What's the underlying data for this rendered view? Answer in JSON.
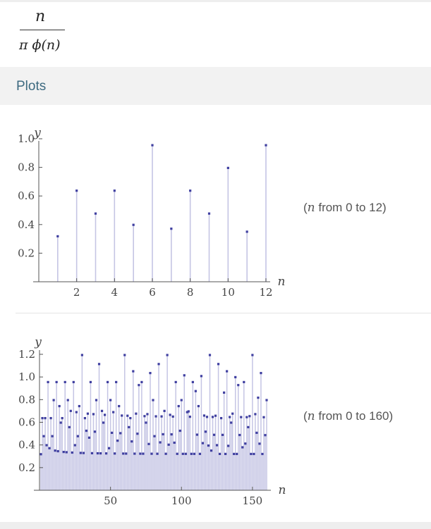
{
  "formula": {
    "numerator": "n",
    "denominator": "π ϕ(n)"
  },
  "section_title": "Plots",
  "plots": [
    {
      "caption_var": "n",
      "caption_rest": " from 0 to 12)"
    },
    {
      "caption_var": "n",
      "caption_rest": " from 0 to 160)"
    }
  ],
  "colors": {
    "stem": "#c5c5e4",
    "point": "#3f3fa0",
    "axis": "#555555"
  },
  "chart_data": [
    {
      "type": "scatter",
      "style": "discrete-stem",
      "xlabel": "n",
      "ylabel": "y",
      "xlim": [
        0,
        12
      ],
      "ylim": [
        0,
        1.0
      ],
      "xticks": [
        2,
        4,
        6,
        8,
        10,
        12
      ],
      "yticks": [
        0.2,
        0.4,
        0.6,
        0.8,
        1.0
      ],
      "x": [
        1,
        2,
        3,
        4,
        5,
        6,
        7,
        8,
        9,
        10,
        11,
        12
      ],
      "y": [
        0.318,
        0.637,
        0.477,
        0.637,
        0.398,
        0.955,
        0.371,
        0.637,
        0.477,
        0.796,
        0.35,
        0.955
      ]
    },
    {
      "type": "scatter",
      "style": "discrete-stem",
      "xlabel": "n",
      "ylabel": "y",
      "xlim": [
        0,
        160
      ],
      "ylim": [
        0,
        1.2
      ],
      "xticks": [
        50,
        100,
        150
      ],
      "yticks": [
        0.2,
        0.4,
        0.6,
        0.8,
        1.0,
        1.2
      ],
      "function": "n / (pi * phi(n))"
    }
  ]
}
